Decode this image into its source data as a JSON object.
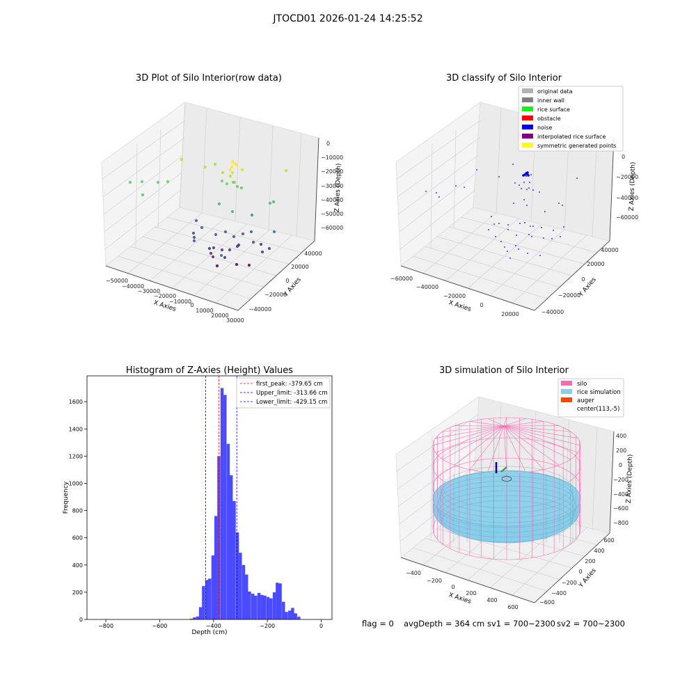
{
  "figure_title": "JTOCD01 2026-01-24 14:25:52",
  "status_line": {
    "flag": "flag = 0",
    "avg_depth": "avgDepth = 364 cm",
    "sv1": "sv1 = 700~2300",
    "sv2": "sv2 = 700~2300"
  },
  "chart_data": [
    {
      "id": "raw",
      "type": "scatter",
      "title": "3D Plot of Silo Interior(row data)",
      "xlabel": "X Axies",
      "ylabel": "Y Axies",
      "zlabel": "Z Axies (Depth)",
      "x_ticks": [
        "−50000",
        "−40000",
        "−30000",
        "−20000",
        "−10000",
        "0",
        "10000",
        "20000",
        "30000"
      ],
      "y_ticks": [
        "−40000",
        "−20000",
        "0",
        "20000",
        "40000"
      ],
      "z_ticks": [
        "0",
        "−10000",
        "−20000",
        "−30000",
        "−40000",
        "−50000",
        "−60000"
      ],
      "grid": true
    },
    {
      "id": "classify",
      "type": "scatter",
      "title": "3D classify of Silo Interior",
      "xlabel": "X Axies",
      "ylabel": "Y Axies",
      "zlabel": "Z Axies (Depth)",
      "x_ticks": [
        "−60000",
        "−40000",
        "−20000",
        "0",
        "20000"
      ],
      "y_ticks": [
        "−40000",
        "−20000",
        "0",
        "20000",
        "40000"
      ],
      "z_ticks": [
        "0",
        "−20000",
        "−40000",
        "−60000"
      ],
      "legend_position": "top-right",
      "legend": [
        {
          "label": "original data",
          "color": "#b3b3b3"
        },
        {
          "label": "inner wall",
          "color": "#808080"
        },
        {
          "label": "rice surface",
          "color": "#00ff00"
        },
        {
          "label": "obstacle",
          "color": "#ff0000"
        },
        {
          "label": "noise",
          "color": "#0000ff"
        },
        {
          "label": "interpolated rice surface",
          "color": "#800080"
        },
        {
          "label": "symmetric generated points",
          "color": "#ffff00"
        }
      ],
      "grid": true
    },
    {
      "id": "histogram",
      "type": "bar",
      "title": "Histogram of Z-Axies (Height) Values",
      "xlabel": "Depth (cm)",
      "ylabel": "Frequency",
      "xlim": [
        -870,
        40
      ],
      "ylim": [
        0,
        1790
      ],
      "x_ticks": [
        -800,
        -600,
        -400,
        -200,
        0
      ],
      "x_tick_labels": [
        "−800",
        "−600",
        "−400",
        "−200",
        "0"
      ],
      "y_ticks": [
        0,
        200,
        400,
        600,
        800,
        1000,
        1200,
        1400,
        1600
      ],
      "bar_color": "#4040ff",
      "bin_width": 11.4,
      "bins": [
        [
          -488,
          5
        ],
        [
          -477,
          15
        ],
        [
          -465,
          22
        ],
        [
          -454,
          90
        ],
        [
          -443,
          245
        ],
        [
          -431,
          290
        ],
        [
          -420,
          300
        ],
        [
          -408,
          470
        ],
        [
          -397,
          760
        ],
        [
          -386,
          1200
        ],
        [
          -374,
          1700
        ],
        [
          -363,
          1650
        ],
        [
          -351,
          1290
        ],
        [
          -340,
          1060
        ],
        [
          -329,
          870
        ],
        [
          -317,
          640
        ],
        [
          -306,
          490
        ],
        [
          -294,
          400
        ],
        [
          -283,
          330
        ],
        [
          -272,
          205
        ],
        [
          -260,
          190
        ],
        [
          -249,
          175
        ],
        [
          -237,
          195
        ],
        [
          -226,
          180
        ],
        [
          -215,
          175
        ],
        [
          -203,
          165
        ],
        [
          -192,
          155
        ],
        [
          -180,
          200
        ],
        [
          -169,
          270
        ],
        [
          -158,
          265
        ],
        [
          -146,
          130
        ],
        [
          -135,
          55
        ],
        [
          -123,
          65
        ],
        [
          -112,
          85
        ],
        [
          -101,
          45
        ],
        [
          -89,
          20
        ]
      ],
      "lines": [
        {
          "label": "first_peak: -379.65 cm",
          "value": -379.65,
          "color": "#ff0000"
        },
        {
          "label": "Upper_limit: -313.66 cm",
          "value": -313.66,
          "color": "#0000ff"
        },
        {
          "label": "Lower_limit: -429.15 cm",
          "value": -429.15,
          "color": "#0000ff"
        }
      ],
      "legend_position": "top-right",
      "grid": false
    },
    {
      "id": "simulation",
      "type": "scatter",
      "title": "3D simulation of Silo Interior",
      "xlabel": "X Axies",
      "ylabel": "Y Axies",
      "zlabel": "Z Axies (Depth)",
      "x_ticks": [
        "−400",
        "−200",
        "0",
        "200",
        "400",
        "600"
      ],
      "y_ticks": [
        "−600",
        "−400",
        "−200",
        "0",
        "200",
        "400",
        "600"
      ],
      "z_ticks": [
        "400",
        "200",
        "0",
        "−200",
        "−400",
        "−600",
        "−800"
      ],
      "legend_position": "top-right",
      "legend": [
        {
          "label": "silo",
          "color": "#ff69b4"
        },
        {
          "label": "rice simulation",
          "color": "#87ceeb"
        },
        {
          "label": "auger",
          "color": "#ff4500"
        },
        {
          "label": "center(113,-5)",
          "color": "none"
        }
      ],
      "grid": true
    }
  ]
}
